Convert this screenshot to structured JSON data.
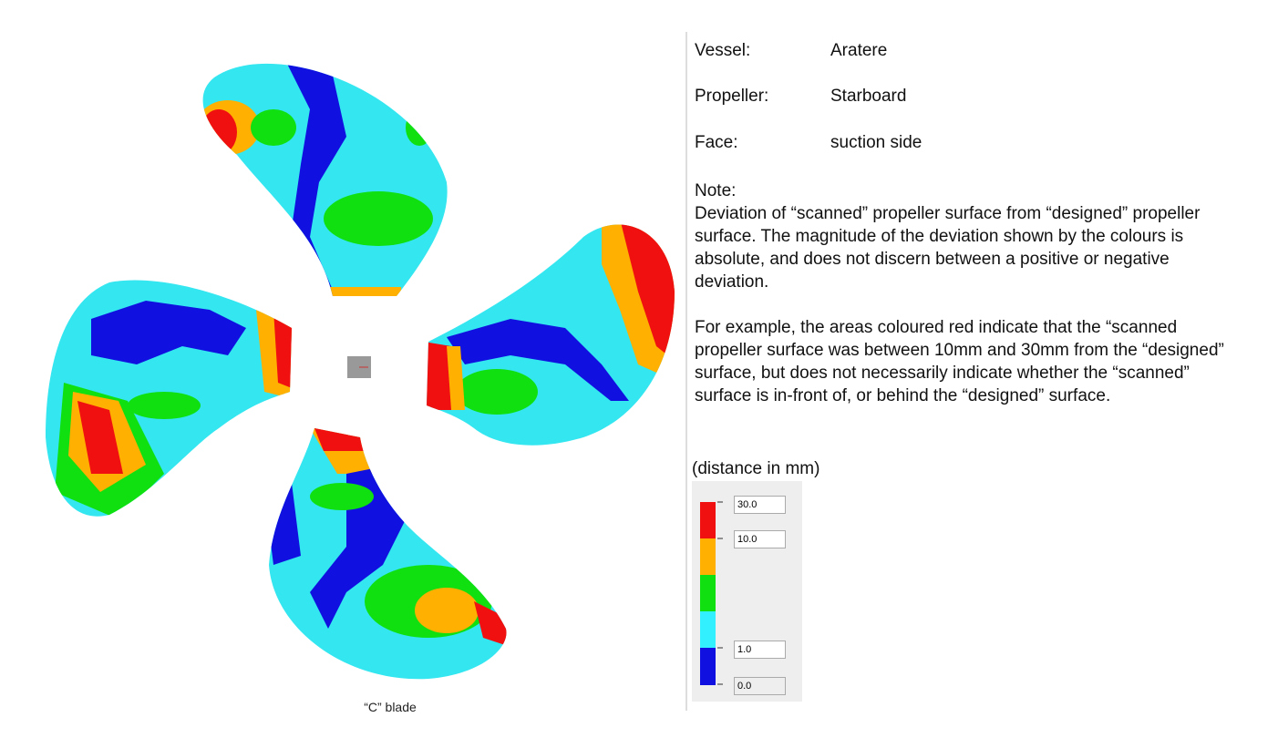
{
  "fields": [
    {
      "label": "Vessel:",
      "value": "Aratere"
    },
    {
      "label": "Propeller:",
      "value": "Starboard"
    },
    {
      "label": "Face:",
      "value": "suction side"
    }
  ],
  "note": {
    "heading": "Note:",
    "paragraphs": [
      "Deviation of “scanned” propeller surface from “designed” propeller surface. The magnitude of the deviation shown by the colours is absolute, and does not discern between a positive or negative deviation.",
      "For example, the areas coloured red indicate that the “scanned propeller surface was between 10mm and 30mm from the “designed” surface, but does not necessarily indicate whether the “scanned” surface is in-front of, or behind the “designed” surface."
    ]
  },
  "legend": {
    "title": "(distance in mm)",
    "inputs": [
      "30.0",
      "10.0",
      "1.0",
      "0.0"
    ]
  },
  "caption": "“C” blade"
}
